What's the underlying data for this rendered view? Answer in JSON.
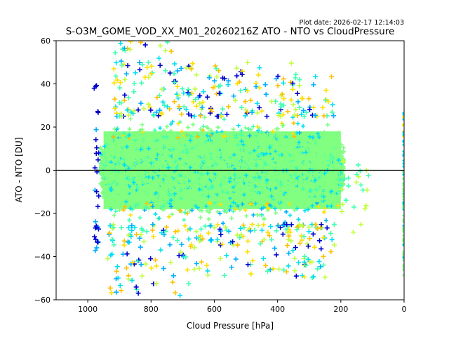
{
  "figure": {
    "plot_date": "Plot date: 2026-02-17 12:14:03"
  },
  "chart_data": {
    "type": "scatter",
    "title": "S-O3M_GOME_VOD_XX_M01_20260216Z ATO - NTO vs CloudPressure",
    "xlabel": "Cloud Pressure [hPa]",
    "ylabel": "ATO - NTO [DU]",
    "xlim": [
      1100,
      0
    ],
    "ylim": [
      -60,
      60
    ],
    "x_inverted": true,
    "xticks": [
      1000,
      800,
      600,
      400,
      200,
      0
    ],
    "xtick_labels": [
      "1000",
      "800",
      "600",
      "400",
      "200",
      "0"
    ],
    "yticks": [
      -60,
      -40,
      -20,
      0,
      20,
      40,
      60
    ],
    "ytick_labels": [
      "−60",
      "−40",
      "−20",
      "0",
      "20",
      "40",
      "60"
    ],
    "grid": false,
    "legend": "none",
    "marker": "+",
    "colormap": "jet-like (color encodes an unlabeled third variable)",
    "reference_line": {
      "y": 0,
      "color": "#000000"
    },
    "colors": {
      "dominant": "#80ff80",
      "cyan": "#00e0f0",
      "light_blue": "#00b0ff",
      "dark_blue": "#0000d0",
      "teal": "#40ffb0",
      "yellow_green": "#c0ff40",
      "yellow": "#ffe000",
      "orange": "#ffc000"
    },
    "distribution": {
      "main_cloud": {
        "x_range": [
          970,
          180
        ],
        "y_core": [
          -25,
          25
        ],
        "dominant_color": "#80ff80"
      },
      "upper_outliers": {
        "x_range": [
          960,
          200
        ],
        "y_range": [
          25,
          60
        ]
      },
      "lower_outliers": {
        "x_range": [
          960,
          200
        ],
        "y_range": [
          -60,
          -25
        ]
      },
      "edge_column": {
        "x": 0,
        "y_range": [
          -50,
          28
        ]
      },
      "sparse_right_tail": {
        "x_range": [
          200,
          100
        ],
        "y_range": [
          -35,
          5
        ]
      }
    }
  }
}
